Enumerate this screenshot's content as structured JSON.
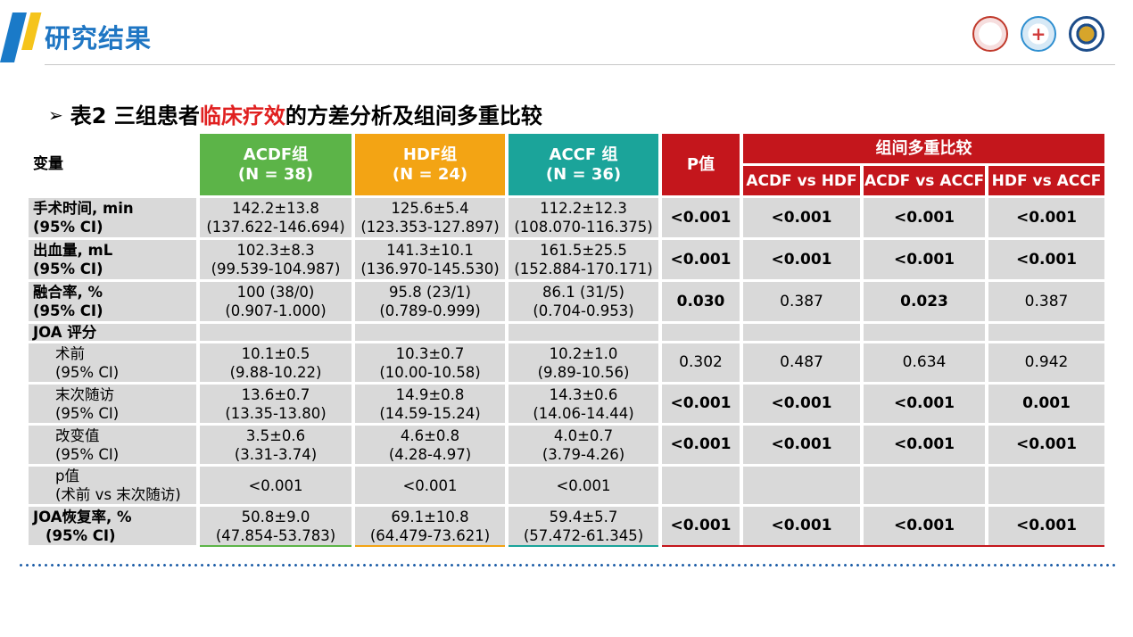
{
  "header": {
    "title": "研究结果"
  },
  "table_title": {
    "prefix": "表2 三组患者",
    "highlight": "临床疗效",
    "suffix": "的方差分析及组间多重比较"
  },
  "table": {
    "col_var": "变量",
    "col_acdf": [
      "ACDF组",
      "(N = 38)"
    ],
    "col_hdf": [
      "HDF组",
      "(N = 24)"
    ],
    "col_accf": [
      "ACCF 组",
      "(N = 36)"
    ],
    "col_p": "P值",
    "col_multi": "组间多重比较",
    "col_multi_subs": [
      "ACDF vs HDF",
      "ACDF vs ACCF",
      "HDF vs ACCF"
    ],
    "rows": [
      {
        "label": [
          "手术时间, min",
          "(95% CI)"
        ],
        "acdf": [
          "142.2±13.8",
          "(137.622-146.694)"
        ],
        "hdf": [
          "125.6±5.4",
          "(123.353-127.897)"
        ],
        "accf": [
          "112.2±12.3",
          "(108.070-116.375)"
        ],
        "p": [
          "<0.001",
          "<0.001",
          "<0.001",
          "<0.001"
        ]
      },
      {
        "label": [
          "出血量, mL",
          "(95% CI)"
        ],
        "acdf": [
          "102.3±8.3",
          "(99.539-104.987)"
        ],
        "hdf": [
          "141.3±10.1",
          "(136.970-145.530)"
        ],
        "accf": [
          "161.5±25.5",
          "(152.884-170.171)"
        ],
        "p": [
          "<0.001",
          "<0.001",
          "<0.001",
          "<0.001"
        ]
      },
      {
        "label": [
          "融合率, %",
          "(95% CI)"
        ],
        "acdf": [
          "100 (38/0)",
          "(0.907-1.000)"
        ],
        "hdf": [
          "95.8 (23/1)",
          "(0.789-0.999)"
        ],
        "accf": [
          "86.1 (31/5)",
          "(0.704-0.953)"
        ],
        "p": [
          "0.030",
          "0.387",
          "0.023",
          "0.387"
        ]
      },
      {
        "label": [
          "JOA 评分"
        ]
      },
      {
        "label": [
          "术前",
          "(95% CI)"
        ],
        "acdf": [
          "10.1±0.5",
          "(9.88-10.22)"
        ],
        "hdf": [
          "10.3±0.7",
          "(10.00-10.58)"
        ],
        "accf": [
          "10.2±1.0",
          "(9.89-10.56)"
        ],
        "p": [
          "0.302",
          "0.487",
          "0.634",
          "0.942"
        ]
      },
      {
        "label": [
          "末次随访",
          "(95% CI)"
        ],
        "acdf": [
          "13.6±0.7",
          "(13.35-13.80)"
        ],
        "hdf": [
          "14.9±0.8",
          "(14.59-15.24)"
        ],
        "accf": [
          "14.3±0.6",
          "(14.06-14.44)"
        ],
        "p": [
          "<0.001",
          "<0.001",
          "<0.001",
          "0.001"
        ]
      },
      {
        "label": [
          "改变值",
          "(95% CI)"
        ],
        "acdf": [
          "3.5±0.6",
          "(3.31-3.74)"
        ],
        "hdf": [
          "4.6±0.8",
          "(4.28-4.97)"
        ],
        "accf": [
          "4.0±0.7",
          "(3.79-4.26)"
        ],
        "p": [
          "<0.001",
          "<0.001",
          "<0.001",
          "<0.001"
        ]
      },
      {
        "label": [
          "p值",
          "(术前 vs 末次随访)"
        ],
        "acdf": [
          "<0.001"
        ],
        "hdf": [
          "<0.001"
        ],
        "accf": [
          "<0.001"
        ]
      },
      {
        "label": [
          "JOA恢复率, %",
          "(95% CI)"
        ],
        "acdf": [
          "50.8±9.0",
          "(47.854-53.783)"
        ],
        "hdf": [
          "69.1±10.8",
          "(64.479-73.621)"
        ],
        "accf": [
          "59.4±5.7",
          "(57.472-61.345)"
        ],
        "p": [
          "<0.001",
          "<0.001",
          "<0.001",
          "<0.001"
        ]
      }
    ]
  },
  "colors": {
    "acdf": "#5cb448",
    "hdf": "#f3a414",
    "accf": "#1ba49a",
    "stats": "#c4161c",
    "title_blue": "#1f76c3",
    "highlight_red": "#e02020"
  },
  "icons": [
    "university-logo-icon",
    "hospital-logo-icon",
    "medical-college-logo-icon"
  ]
}
